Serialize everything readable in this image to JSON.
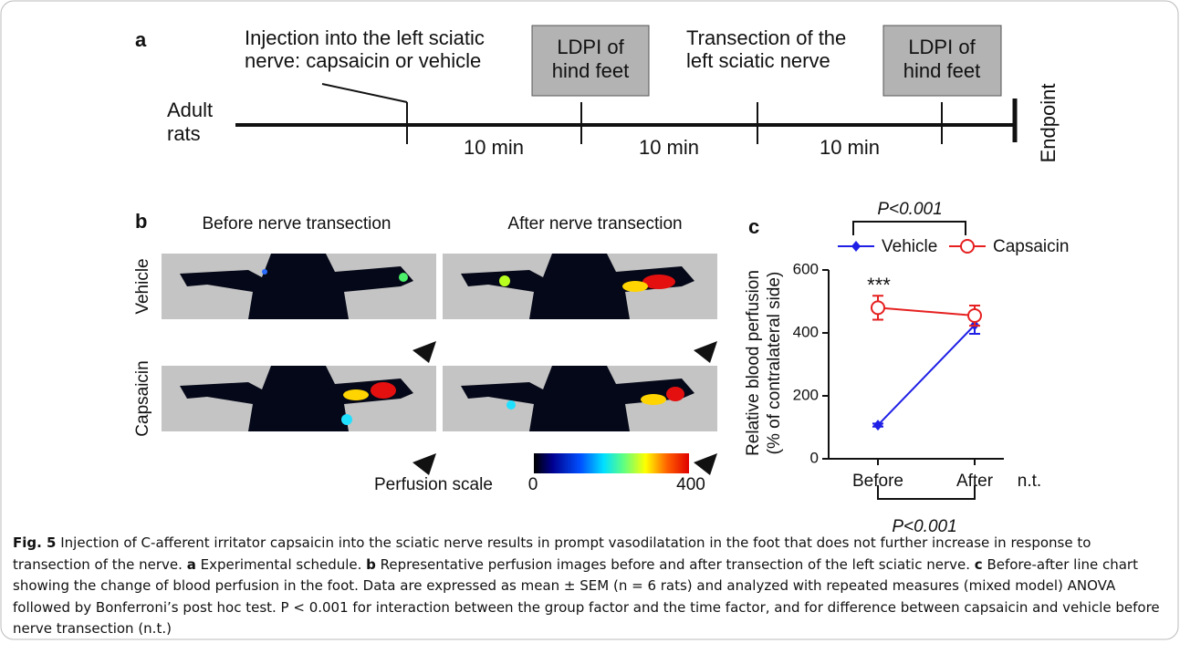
{
  "panel_a": {
    "letter": "a",
    "start": [
      "Adult",
      "rats"
    ],
    "injection": [
      "Injection into the left sciatic",
      "nerve: capsaicin or vehicle"
    ],
    "ldpi_1": [
      "LDPI of",
      "hind feet"
    ],
    "transection": [
      "Transection of the",
      "left sciatic nerve"
    ],
    "ldpi_2": [
      "LDPI of",
      "hind feet"
    ],
    "intervals": [
      "10 min",
      "10 min",
      "10 min"
    ],
    "end": "Endpoint"
  },
  "panel_b": {
    "letter": "b",
    "columns": [
      "Before nerve transection",
      "After nerve transection"
    ],
    "rows": [
      "Vehicle",
      "Capsaicin"
    ],
    "scale": {
      "label": "Perfusion scale",
      "min": "0",
      "max": "400"
    }
  },
  "chart_data": {
    "type": "line",
    "letter": "c",
    "y_label": [
      "Relative blood perfusion",
      "(% of contralateral side)"
    ],
    "categories": [
      "Before",
      "After"
    ],
    "series": [
      {
        "name": "Vehicle",
        "color": "#1f1fe6",
        "marker": "diamond",
        "values": [
          107,
          425
        ],
        "errors": [
          5,
          28
        ]
      },
      {
        "name": "Capsaicin",
        "color": "#e62020",
        "marker": "open-circle",
        "values": [
          480,
          455
        ],
        "errors": [
          38,
          32
        ]
      }
    ],
    "ylim": [
      0,
      600
    ],
    "yticks": [
      0,
      200,
      400,
      600
    ],
    "annotations": {
      "top_bracket": "P<0.001",
      "bottom_bracket": "P<0.001",
      "stars": "***",
      "stars_note": "n.t."
    }
  },
  "caption": {
    "label": "Fig. 5",
    "segments": [
      " Injection of C-afferent irritator capsaicin into the sciatic nerve results in prompt vasodilatation in the foot that does not further increase in response to transection of the nerve. ",
      "a",
      " Experimental schedule. ",
      "b",
      " Representative perfusion images before and after transection of the left sciatic nerve. ",
      "c",
      " Before-after line chart showing the change of blood perfusion in the foot. Data are expressed as mean ± SEM (n = 6 rats) and analyzed with repeated measures (mixed model) ANOVA followed by Bonferroni’s post hoc test. P < 0.001 for interaction between the group factor and the time factor, and for difference between capsaicin and vehicle before nerve transection (n.t.)"
    ]
  }
}
